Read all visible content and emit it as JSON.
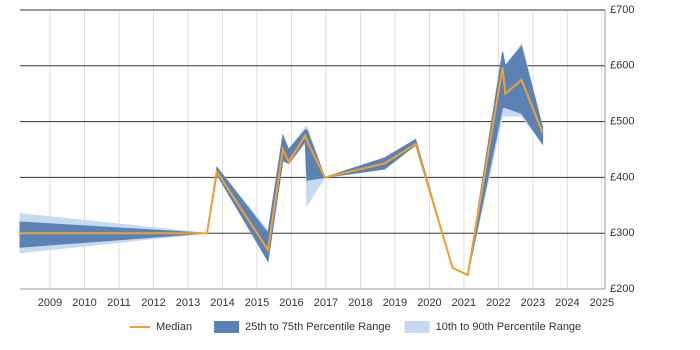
{
  "chart_data": {
    "type": "line",
    "x": [
      2008.13,
      2013.55,
      2013.84,
      2015.32,
      2015.75,
      2015.92,
      2016.4,
      2016.45,
      2016.97,
      2018.7,
      2019.6,
      2020.67,
      2021.11,
      2022.12,
      2022.2,
      2022.67,
      2023.28
    ],
    "series": [
      {
        "name": "Median",
        "color": "#f0a030",
        "values": [
          300,
          300,
          410,
          270,
          450,
          428,
          475,
          465,
          400,
          425,
          460,
          238,
          225,
          597,
          550,
          575,
          480
        ]
      }
    ],
    "bands": [
      {
        "name": "10th to 90th Percentile Range",
        "color": "#c6d9ee",
        "lower": [
          265,
          300,
          405,
          255,
          430,
          425,
          460,
          350,
          400,
          415,
          458,
          238,
          225,
          510,
          510,
          510,
          460
        ],
        "upper": [
          335,
          300,
          418,
          305,
          475,
          450,
          490,
          490,
          400,
          435,
          468,
          238,
          225,
          625,
          600,
          640,
          490
        ]
      },
      {
        "name": "25th to 75th Percentile Range",
        "color": "#5b82b5",
        "lower": [
          275,
          300,
          405,
          250,
          430,
          425,
          465,
          395,
          400,
          415,
          458,
          238,
          225,
          525,
          525,
          515,
          460
        ],
        "upper": [
          320,
          300,
          418,
          300,
          475,
          450,
          485,
          485,
          400,
          435,
          468,
          238,
          225,
          625,
          600,
          635,
          490
        ]
      }
    ],
    "xlim": [
      2008.13,
      2025.09
    ],
    "xticks": [
      2009,
      2010,
      2011,
      2012,
      2013,
      2014,
      2015,
      2016,
      2017,
      2018,
      2019,
      2020,
      2021,
      2022,
      2023,
      2024,
      2025
    ],
    "ylim": [
      200,
      700
    ],
    "yticks": [
      {
        "value": 200,
        "label": "£200"
      },
      {
        "value": 300,
        "label": "£300"
      },
      {
        "value": 400,
        "label": "£400"
      },
      {
        "value": 500,
        "label": "£500"
      },
      {
        "value": 600,
        "label": "£600"
      },
      {
        "value": 700,
        "label": "£700"
      }
    ],
    "grid": true
  }
}
